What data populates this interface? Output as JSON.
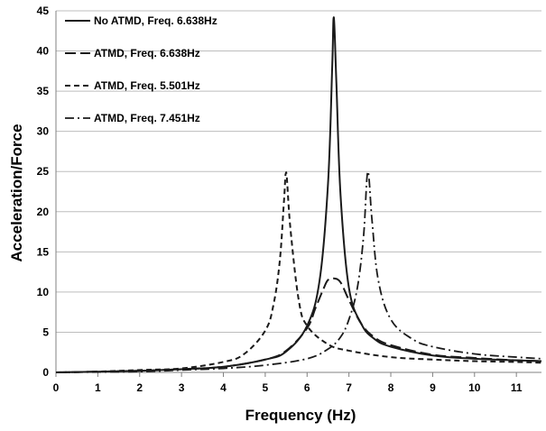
{
  "chart_data": {
    "type": "line",
    "xlabel": "Frequency (Hz)",
    "ylabel": "Acceleration/Force",
    "xlim": [
      0,
      11.6
    ],
    "ylim": [
      0,
      45
    ],
    "xticks": [
      0,
      1,
      2,
      3,
      4,
      5,
      6,
      7,
      8,
      9,
      10,
      11
    ],
    "yticks": [
      0,
      5,
      10,
      15,
      20,
      25,
      30,
      35,
      40,
      45
    ],
    "grid": "horizontal",
    "legend_position": "top-left",
    "series": [
      {
        "name": "No ATMD, Freq. 6.638Hz",
        "style": "solid",
        "peak_x": 6.638,
        "peak_y": 44.2,
        "x": [
          0,
          2,
          3,
          4,
          5,
          5.5,
          6,
          6.3,
          6.5,
          6.6,
          6.638,
          6.7,
          6.8,
          7,
          7.3,
          7.6,
          8,
          9,
          10,
          11,
          11.6
        ],
        "y": [
          0,
          0.2,
          0.4,
          0.7,
          1.6,
          2.6,
          5.8,
          11.5,
          23.5,
          38,
          44.2,
          36,
          22,
          10.5,
          6,
          4.2,
          3.2,
          2.1,
          1.7,
          1.5,
          1.4
        ]
      },
      {
        "name": "ATMD, Freq. 6.638Hz",
        "style": "long-dash",
        "peak_x": 6.638,
        "peak_y": 11.7,
        "x": [
          0,
          2,
          3,
          4,
          5,
          5.5,
          6,
          6.2,
          6.4,
          6.5,
          6.638,
          6.8,
          7,
          7.3,
          7.6,
          8,
          9,
          10,
          11,
          11.6
        ],
        "y": [
          0,
          0.2,
          0.4,
          0.7,
          1.6,
          2.7,
          5.5,
          8,
          10.5,
          11.5,
          11.7,
          11.2,
          9,
          6,
          4.4,
          3.4,
          2.2,
          1.8,
          1.5,
          1.4
        ]
      },
      {
        "name": "ATMD, Freq. 5.501Hz",
        "style": "short-dash",
        "peak_x": 5.501,
        "peak_y": 24.9,
        "x": [
          0,
          1,
          2,
          3,
          4,
          4.5,
          5,
          5.2,
          5.35,
          5.45,
          5.501,
          5.6,
          5.8,
          6,
          6.5,
          7,
          8,
          9,
          10,
          11,
          11.6
        ],
        "y": [
          0,
          0.1,
          0.3,
          0.5,
          1.3,
          2.3,
          5.2,
          8.5,
          14,
          21.5,
          24.9,
          18,
          9,
          5.8,
          3.5,
          2.7,
          1.9,
          1.6,
          1.4,
          1.3,
          1.2
        ]
      },
      {
        "name": "ATMD, Freq. 7.451Hz",
        "style": "dash-dot",
        "peak_x": 7.451,
        "peak_y": 25.0,
        "x": [
          0,
          2,
          3,
          4,
          5,
          6,
          6.5,
          6.8,
          7,
          7.2,
          7.35,
          7.451,
          7.55,
          7.7,
          8,
          8.5,
          9,
          10,
          11,
          11.6
        ],
        "y": [
          0,
          0.1,
          0.3,
          0.5,
          0.9,
          1.7,
          2.9,
          4.4,
          6.6,
          10.5,
          17,
          25,
          19,
          11.5,
          6.6,
          4.2,
          3.2,
          2.3,
          1.9,
          1.7
        ]
      }
    ]
  }
}
